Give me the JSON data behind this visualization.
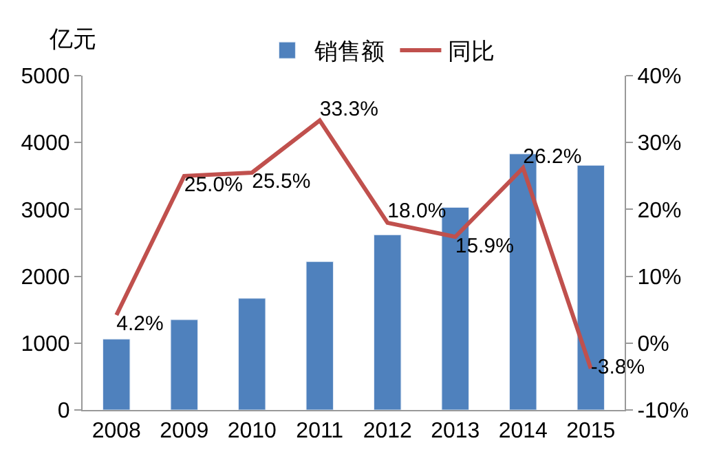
{
  "chart_data": {
    "type": "bar",
    "ylabel": "亿元",
    "categories": [
      "2008",
      "2009",
      "2010",
      "2011",
      "2012",
      "2013",
      "2014",
      "2015"
    ],
    "series": [
      {
        "name": "销售额",
        "color": "#4f81bd",
        "values": [
          1060,
          1350,
          1670,
          2220,
          2620,
          3030,
          3830,
          3660
        ]
      },
      {
        "name": "同比",
        "type": "line",
        "axis": "y2",
        "color": "#c0504d",
        "values": [
          4.2,
          25.0,
          25.5,
          33.3,
          18.0,
          15.9,
          26.2,
          -3.8
        ],
        "value_labels": [
          "4.2%",
          "25.0%",
          "25.5%",
          "33.3%",
          "18.0%",
          "15.9%",
          "26.2%",
          "-3.8%"
        ]
      }
    ],
    "ylim": [
      0,
      5000
    ],
    "yticks": [
      0,
      1000,
      2000,
      3000,
      4000,
      5000
    ],
    "y2lim": [
      -10,
      40
    ],
    "y2ticks": [
      {
        "value": -10,
        "label": "-10%"
      },
      {
        "value": 0,
        "label": "0%"
      },
      {
        "value": 10,
        "label": "10%"
      },
      {
        "value": 20,
        "label": "20%"
      },
      {
        "value": 30,
        "label": "30%"
      },
      {
        "value": 40,
        "label": "40%"
      }
    ],
    "legend": "top",
    "marker": "none",
    "line_style": "solid"
  }
}
